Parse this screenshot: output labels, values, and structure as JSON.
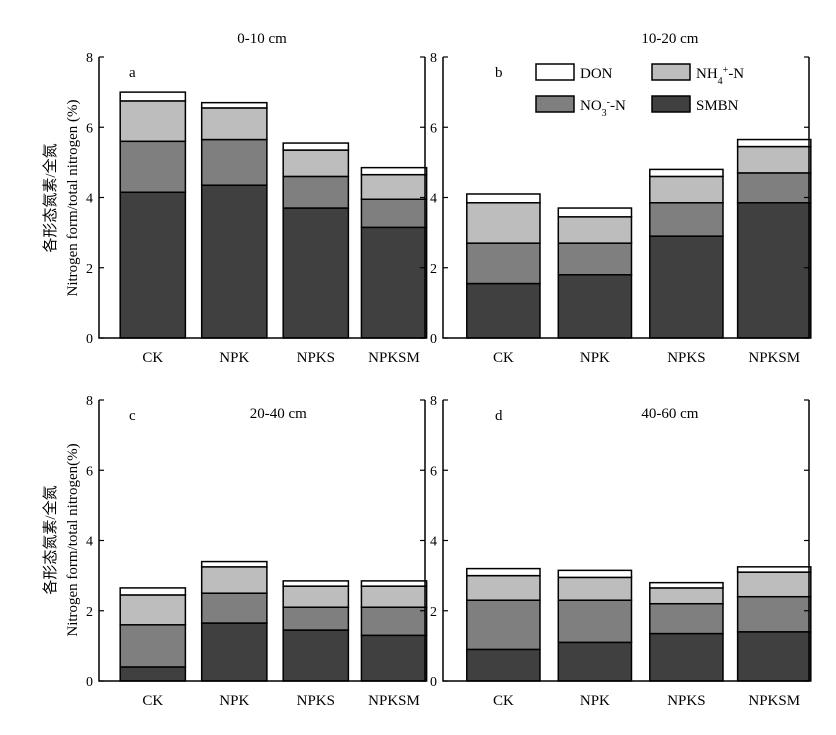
{
  "ylabel_cn": "各形态氮素/全氮",
  "ylabel_en": "Nitrogen form/total nitrogen (%)",
  "ylabel_en_bottom": "Nitrogen form/total nitrogen(%)",
  "legend": {
    "labels": [
      "DON",
      "NH4+-N",
      "NO3--N",
      "SMBN"
    ],
    "colors": [
      "#ffffff",
      "#bdbdbd",
      "#7f7f7f",
      "#404040"
    ]
  },
  "chart_data": [
    {
      "type": "bar",
      "stacked": true,
      "panel": "a",
      "title": "0-10 cm",
      "categories": [
        "CK",
        "NPK",
        "NPKS",
        "NPKSM"
      ],
      "ylim": [
        0,
        8
      ],
      "yticks": [
        "0",
        "2",
        "4",
        "6",
        "8"
      ],
      "series": [
        {
          "name": "SMBN",
          "values": [
            4.15,
            4.35,
            3.7,
            3.15
          ]
        },
        {
          "name": "NO3--N",
          "values": [
            1.45,
            1.3,
            0.9,
            0.8
          ]
        },
        {
          "name": "NH4+-N",
          "values": [
            1.15,
            0.9,
            0.75,
            0.7
          ]
        },
        {
          "name": "DON",
          "values": [
            0.25,
            0.15,
            0.2,
            0.2
          ]
        }
      ]
    },
    {
      "type": "bar",
      "stacked": true,
      "panel": "b",
      "title": "10-20 cm",
      "categories": [
        "CK",
        "NPK",
        "NPKS",
        "NPKSM"
      ],
      "ylim": [
        0,
        8
      ],
      "yticks": [
        "0",
        "2",
        "4",
        "6",
        "8"
      ],
      "series": [
        {
          "name": "SMBN",
          "values": [
            1.55,
            1.8,
            2.9,
            3.85
          ]
        },
        {
          "name": "NO3--N",
          "values": [
            1.15,
            0.9,
            0.95,
            0.85
          ]
        },
        {
          "name": "NH4+-N",
          "values": [
            1.15,
            0.75,
            0.75,
            0.75
          ]
        },
        {
          "name": "DON",
          "values": [
            0.25,
            0.25,
            0.2,
            0.2
          ]
        }
      ]
    },
    {
      "type": "bar",
      "stacked": true,
      "panel": "c",
      "title": "20-40 cm",
      "categories": [
        "CK",
        "NPK",
        "NPKS",
        "NPKSM"
      ],
      "ylim": [
        0,
        8
      ],
      "yticks": [
        "0",
        "2",
        "4",
        "6",
        "8"
      ],
      "series": [
        {
          "name": "SMBN",
          "values": [
            0.4,
            1.65,
            1.45,
            1.3
          ]
        },
        {
          "name": "NO3--N",
          "values": [
            1.2,
            0.85,
            0.65,
            0.8
          ]
        },
        {
          "name": "NH4+-N",
          "values": [
            0.85,
            0.75,
            0.6,
            0.6
          ]
        },
        {
          "name": "DON",
          "values": [
            0.2,
            0.15,
            0.15,
            0.15
          ]
        }
      ]
    },
    {
      "type": "bar",
      "stacked": true,
      "panel": "d",
      "title": "40-60 cm",
      "categories": [
        "CK",
        "NPK",
        "NPKS",
        "NPKSM"
      ],
      "ylim": [
        0,
        8
      ],
      "yticks": [
        "0",
        "2",
        "4",
        "6",
        "8"
      ],
      "series": [
        {
          "name": "SMBN",
          "values": [
            0.9,
            1.1,
            1.35,
            1.4
          ]
        },
        {
          "name": "NO3--N",
          "values": [
            1.4,
            1.2,
            0.85,
            1.0
          ]
        },
        {
          "name": "NH4+-N",
          "values": [
            0.7,
            0.65,
            0.45,
            0.7
          ]
        },
        {
          "name": "DON",
          "values": [
            0.2,
            0.2,
            0.15,
            0.15
          ]
        }
      ]
    }
  ]
}
